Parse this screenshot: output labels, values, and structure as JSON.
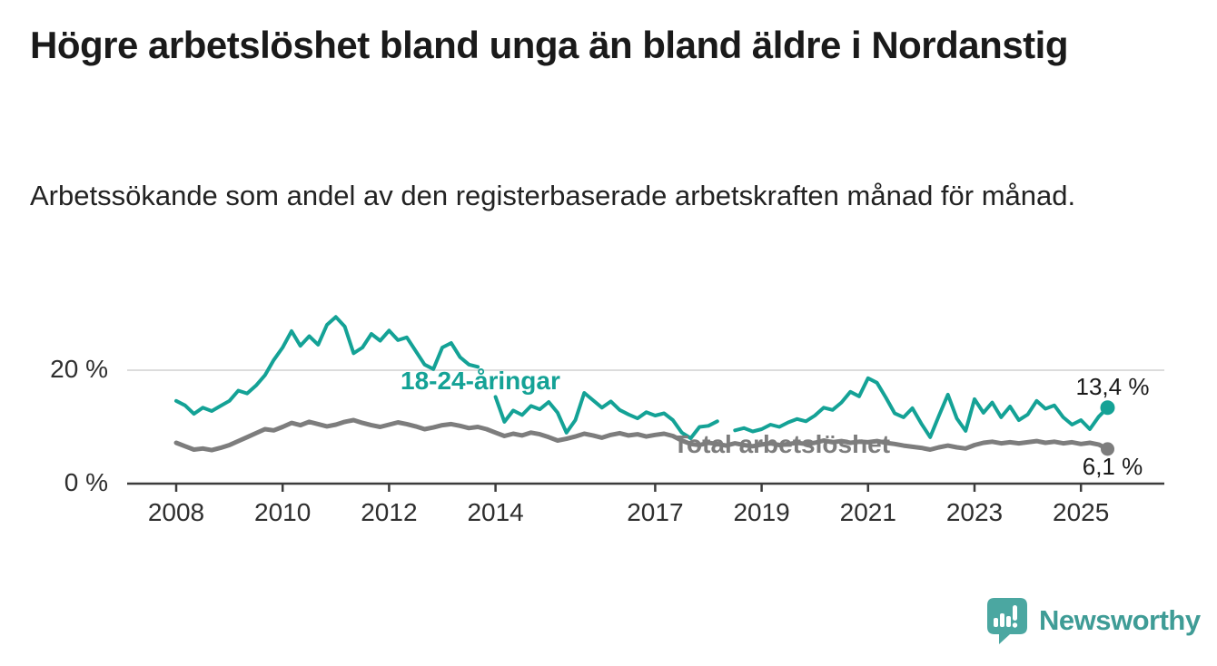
{
  "title": "Högre arbetslöshet bland unga än bland äldre i Nordanstig",
  "subtitle": "Arbetssökande som andel av den registerbaserade arbetskraften månad för månad.",
  "branding": {
    "name": "Newsworthy",
    "wordmark_color": "#3f9c96",
    "icon": "newsworthy-bubble-bar-chart-icon",
    "icon_color": "#4ba7a1"
  },
  "chart_data": {
    "type": "line",
    "title": "Högre arbetslöshet bland unga än bland äldre i Nordanstig",
    "subtitle": "Arbetssökande som andel av den registerbaserade arbetskraften månad för månad.",
    "unit": "%",
    "grid": "horizontal-only",
    "legend_position": "inline-labels",
    "x_range": [
      2008.0,
      2025.5
    ],
    "x_step_months": 2,
    "ylim": [
      0,
      32
    ],
    "x_ticks": [
      2008,
      2010,
      2012,
      2014,
      2017,
      2019,
      2021,
      2023,
      2025
    ],
    "y_ticks": [
      {
        "value": 0,
        "label": "0 %"
      },
      {
        "value": 20,
        "label": "20 %"
      }
    ],
    "series": [
      {
        "name": "18-24-åringar",
        "color": "#14a296",
        "end_label": "13,4 %",
        "end_value": 13.4,
        "values": [
          14.6,
          13.8,
          12.3,
          13.4,
          12.8,
          13.7,
          14.6,
          16.4,
          15.9,
          17.3,
          19.1,
          21.8,
          24.0,
          26.9,
          24.3,
          26.0,
          24.5,
          28.0,
          29.4,
          27.7,
          23.0,
          24.0,
          26.4,
          25.2,
          27.0,
          25.3,
          25.8,
          23.4,
          21.0,
          20.2,
          24.0,
          24.8,
          22.3,
          21.0,
          20.6,
          null,
          15.3,
          10.9,
          12.9,
          12.1,
          13.7,
          13.1,
          14.4,
          12.5,
          9.0,
          11.2,
          16.0,
          14.7,
          13.4,
          14.5,
          13.0,
          12.2,
          11.5,
          12.6,
          12.0,
          12.4,
          11.2,
          9.0,
          8.0,
          10.0,
          10.2,
          11.0,
          null,
          9.4,
          9.8,
          9.2,
          9.6,
          10.4,
          10.0,
          10.8,
          11.4,
          11.0,
          12.0,
          13.4,
          13.0,
          14.3,
          16.2,
          15.4,
          18.6,
          17.8,
          15.2,
          12.4,
          11.7,
          13.3,
          10.6,
          8.2,
          12.0,
          15.7,
          11.5,
          9.3,
          14.9,
          12.5,
          14.3,
          11.7,
          13.6,
          11.2,
          12.2,
          14.6,
          13.2,
          13.8,
          11.7,
          10.4,
          11.2,
          9.6,
          11.8,
          13.4
        ]
      },
      {
        "name": "Total arbetslöshet",
        "color": "#7d7d7d",
        "end_label": "6,1 %",
        "end_value": 6.1,
        "values": [
          7.2,
          6.6,
          6.0,
          6.2,
          5.9,
          6.3,
          6.8,
          7.5,
          8.2,
          8.9,
          9.6,
          9.4,
          10.0,
          10.7,
          10.3,
          10.9,
          10.5,
          10.1,
          10.4,
          10.9,
          11.2,
          10.7,
          10.3,
          10.0,
          10.4,
          10.8,
          10.5,
          10.1,
          9.6,
          9.9,
          10.3,
          10.5,
          10.2,
          9.8,
          10.0,
          9.6,
          9.0,
          8.4,
          8.8,
          8.5,
          9.0,
          8.7,
          8.2,
          7.6,
          7.9,
          8.3,
          8.8,
          8.5,
          8.1,
          8.6,
          8.9,
          8.5,
          8.7,
          8.3,
          8.6,
          8.8,
          8.4,
          7.6,
          7.0,
          6.8,
          7.2,
          7.0,
          6.7,
          7.1,
          6.8,
          6.6,
          6.9,
          7.1,
          6.8,
          7.0,
          7.2,
          7.0,
          7.2,
          7.6,
          7.3,
          7.5,
          7.2,
          7.4,
          7.3,
          7.5,
          7.2,
          7.0,
          6.7,
          6.5,
          6.3,
          6.0,
          6.4,
          6.7,
          6.4,
          6.2,
          6.8,
          7.2,
          7.4,
          7.1,
          7.3,
          7.1,
          7.3,
          7.5,
          7.2,
          7.4,
          7.1,
          7.3,
          7.0,
          7.2,
          6.9,
          6.1
        ]
      }
    ],
    "axis_colors": {
      "axis_line": "#3c3c3c",
      "grid_line": "#dcdcdc",
      "tick_text": "#2e2e2e"
    }
  }
}
